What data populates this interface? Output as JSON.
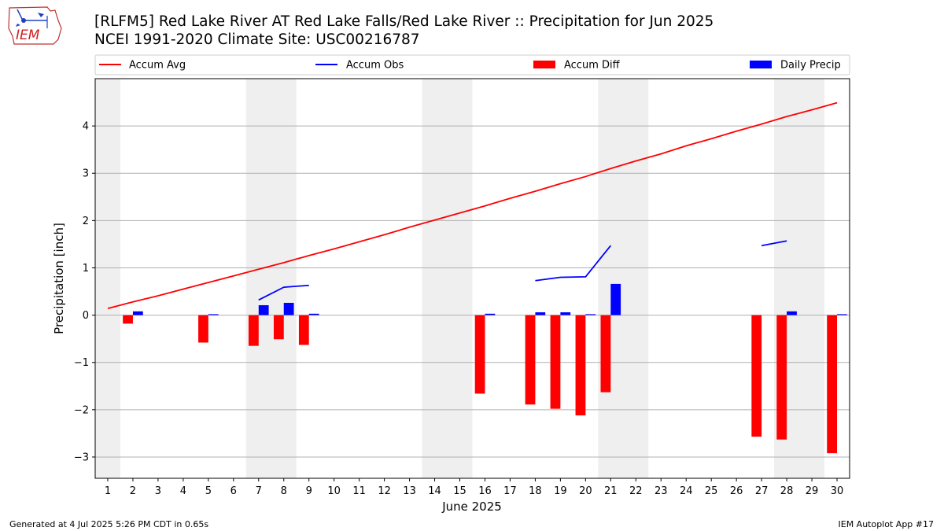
{
  "header": {
    "title_line1": "[RLFM5] Red Lake River  AT Red Lake Falls/Red Lake River :: Precipitation for Jun 2025",
    "title_line2": "NCEI 1991-2020 Climate Site: USC00216787",
    "logo_text": "IEM"
  },
  "footer": {
    "left": "Generated at 4 Jul 2025 5:26 PM CDT in 0.65s",
    "right": "IEM Autoplot App #17"
  },
  "colors": {
    "accum_avg": "#ff0000",
    "accum_obs": "#0000ff",
    "accum_diff": "#ff0000",
    "daily_precip": "#0000ff",
    "weekend_shade": "#efefef",
    "grid": "#b0b0b0"
  },
  "chart_data": {
    "type": "bar",
    "xlabel": "June 2025",
    "ylabel": "Precipitation [inch]",
    "xlim": [
      0.5,
      30.5
    ],
    "ylim": [
      -3.45,
      5.0
    ],
    "yticks": [
      -3,
      -2,
      -1,
      0,
      1,
      2,
      3,
      4
    ],
    "ytick_labels": [
      "−3",
      "−2",
      "−1",
      "0",
      "1",
      "2",
      "3",
      "4"
    ],
    "days": [
      1,
      2,
      3,
      4,
      5,
      6,
      7,
      8,
      9,
      10,
      11,
      12,
      13,
      14,
      15,
      16,
      17,
      18,
      19,
      20,
      21,
      22,
      23,
      24,
      25,
      26,
      27,
      28,
      29,
      30
    ],
    "grid": "y",
    "legend_position": "top",
    "weekend_ranges": [
      [
        0.5,
        1.5
      ],
      [
        6.5,
        8.5
      ],
      [
        13.5,
        15.5
      ],
      [
        20.5,
        22.5
      ],
      [
        27.5,
        29.5
      ]
    ],
    "series": [
      {
        "name": "Accum Avg",
        "kind": "line",
        "values": [
          0.14,
          0.28,
          0.41,
          0.55,
          0.69,
          0.83,
          0.97,
          1.11,
          1.26,
          1.4,
          1.55,
          1.7,
          1.86,
          2.01,
          2.16,
          2.31,
          2.47,
          2.62,
          2.78,
          2.93,
          3.1,
          3.26,
          3.41,
          3.58,
          3.73,
          3.89,
          4.04,
          4.2,
          4.34,
          4.49
        ]
      },
      {
        "name": "Accum Obs",
        "kind": "line",
        "values": [
          null,
          null,
          null,
          null,
          null,
          null,
          0.32,
          0.59,
          0.63,
          null,
          null,
          null,
          null,
          null,
          null,
          null,
          null,
          0.73,
          0.8,
          0.81,
          1.47,
          null,
          null,
          null,
          null,
          null,
          1.47,
          1.57,
          null,
          null
        ]
      },
      {
        "name": "Accum Diff",
        "kind": "bar",
        "values": [
          null,
          -0.18,
          null,
          null,
          -0.58,
          null,
          -0.65,
          -0.51,
          -0.63,
          null,
          null,
          null,
          null,
          null,
          null,
          -1.66,
          null,
          -1.89,
          -1.98,
          -2.12,
          -1.63,
          null,
          null,
          null,
          null,
          null,
          -2.57,
          -2.63,
          null,
          -2.92
        ]
      },
      {
        "name": "Daily Precip",
        "kind": "bar",
        "values": [
          null,
          0.08,
          null,
          null,
          0.01,
          null,
          0.21,
          0.26,
          0.03,
          null,
          null,
          null,
          null,
          null,
          null,
          0.03,
          null,
          0.06,
          0.06,
          0.01,
          0.66,
          null,
          null,
          null,
          null,
          null,
          null,
          0.08,
          null,
          0.01
        ]
      }
    ]
  }
}
